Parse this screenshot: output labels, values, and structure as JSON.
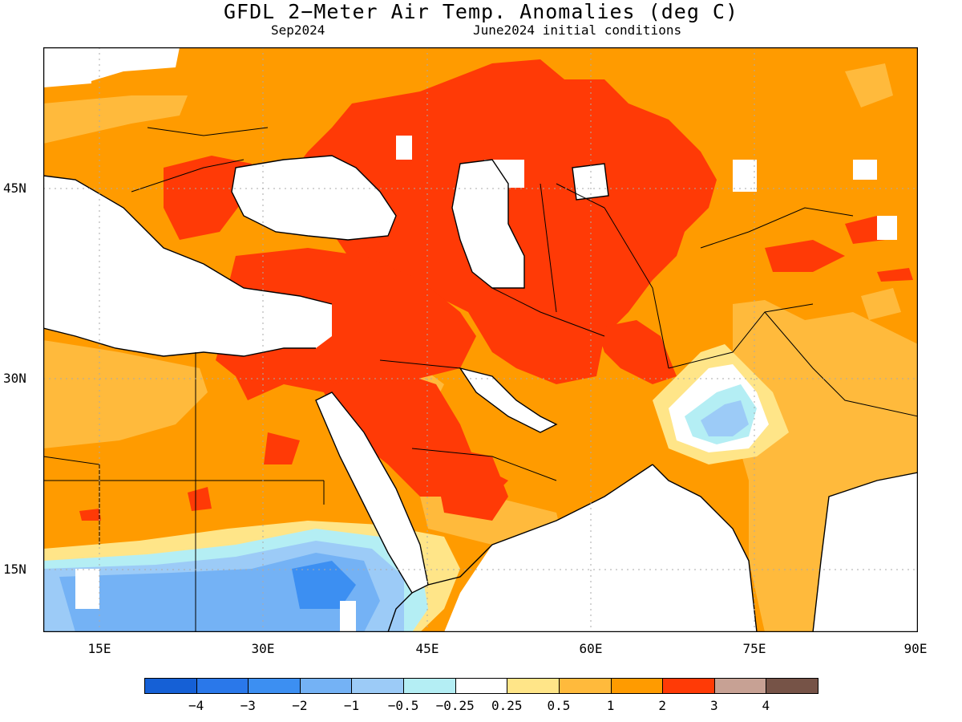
{
  "title": "GFDL 2−Meter Air Temp. Anomalies (deg C)",
  "subtitle_left": "Sep2024",
  "subtitle_right": "June2024 initial conditions",
  "lat_labels": [
    "45N",
    "30N",
    "15N"
  ],
  "lon_labels": [
    "15E",
    "30E",
    "45E",
    "60E",
    "75E",
    "90E"
  ],
  "colorbar": {
    "colors": [
      "#1560d6",
      "#2a78ea",
      "#3c8ff2",
      "#74b2f5",
      "#9ccbf7",
      "#b4eef4",
      "#ffffff",
      "#ffe588",
      "#ffba3c",
      "#ff9b00",
      "#ff3a06",
      "#c7a194",
      "#765347"
    ],
    "labels": [
      "−4",
      "−3",
      "−2",
      "−1",
      "−0.5",
      "−0.25",
      "0.25",
      "0.5",
      "1",
      "2",
      "3",
      "4"
    ]
  },
  "map_colors": {
    "ocean": "#ffffff",
    "anomaly_0_5_to_1": "#ffba3c",
    "anomaly_1_to_2": "#ff9b00",
    "anomaly_2_to_3": "#ff3a06",
    "anomaly_neg_0_25": "#b4eef4",
    "anomaly_neg_0_5": "#9ccbf7",
    "anomaly_neg_1": "#74b2f5",
    "anomaly_neg_2": "#3c8ff2",
    "anomaly_0_25": "#ffe588",
    "coastline": "#000000",
    "gridline": "#aaaaaa"
  }
}
